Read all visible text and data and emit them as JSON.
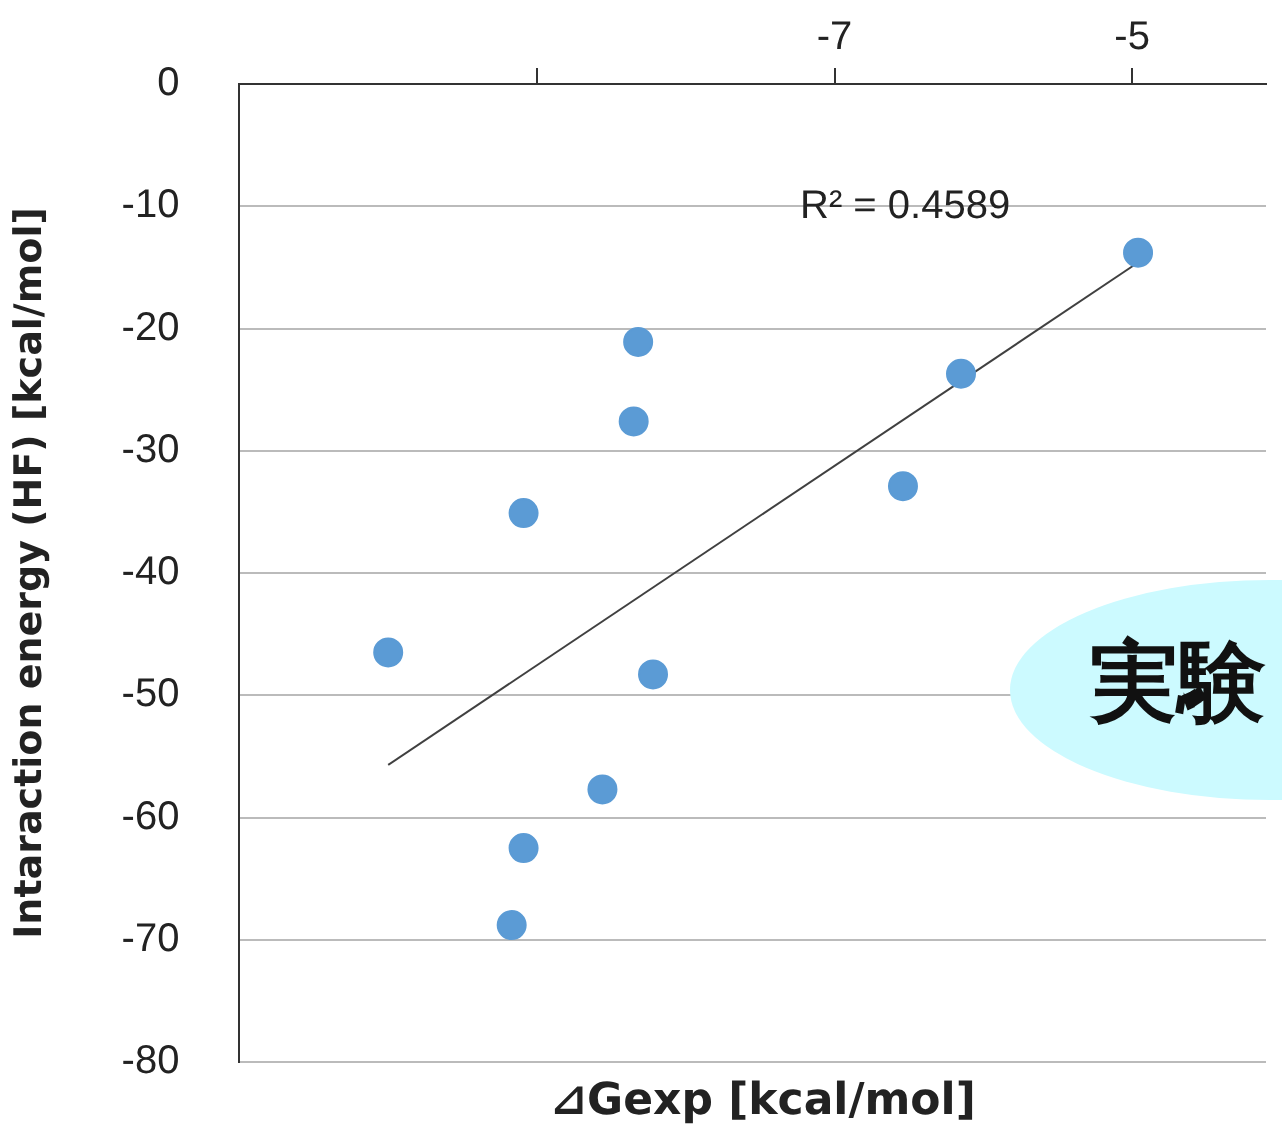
{
  "chart_data": {
    "type": "scatter",
    "xlabel": "⊿Gexp [kcal/mol]",
    "ylabel": "Intaraction energy (HF) [kcal/mol]",
    "annotations": [
      "R² = 0.4589",
      "実験"
    ],
    "series": [
      {
        "color": "#5b9bd5",
        "marker": "circle",
        "x": [
          -10.0,
          -9.09,
          -8.32,
          -8.35,
          -8.22,
          -8.56,
          -9.09,
          -9.17,
          -6.54,
          -6.15,
          -4.96
        ],
        "values": [
          -46.5,
          -35.1,
          -21.1,
          -27.6,
          -48.3,
          -57.7,
          -62.5,
          -68.8,
          -32.9,
          -23.7,
          -13.8
        ]
      },
      {
        "type": "line",
        "color": "#404040",
        "x": [
          -10.0,
          -4.96
        ],
        "values": [
          -55.7,
          -14.6
        ]
      }
    ],
    "xlim": [
      -11,
      -4.1
    ],
    "xticks": [
      {
        "value": -9,
        "label": null
      },
      -7,
      -5
    ],
    "ylim": [
      -80,
      0
    ],
    "yticks": [
      0,
      -10,
      -20,
      -30,
      -40,
      -50,
      -60,
      -70,
      -80
    ],
    "grid": "y",
    "legend": false
  }
}
